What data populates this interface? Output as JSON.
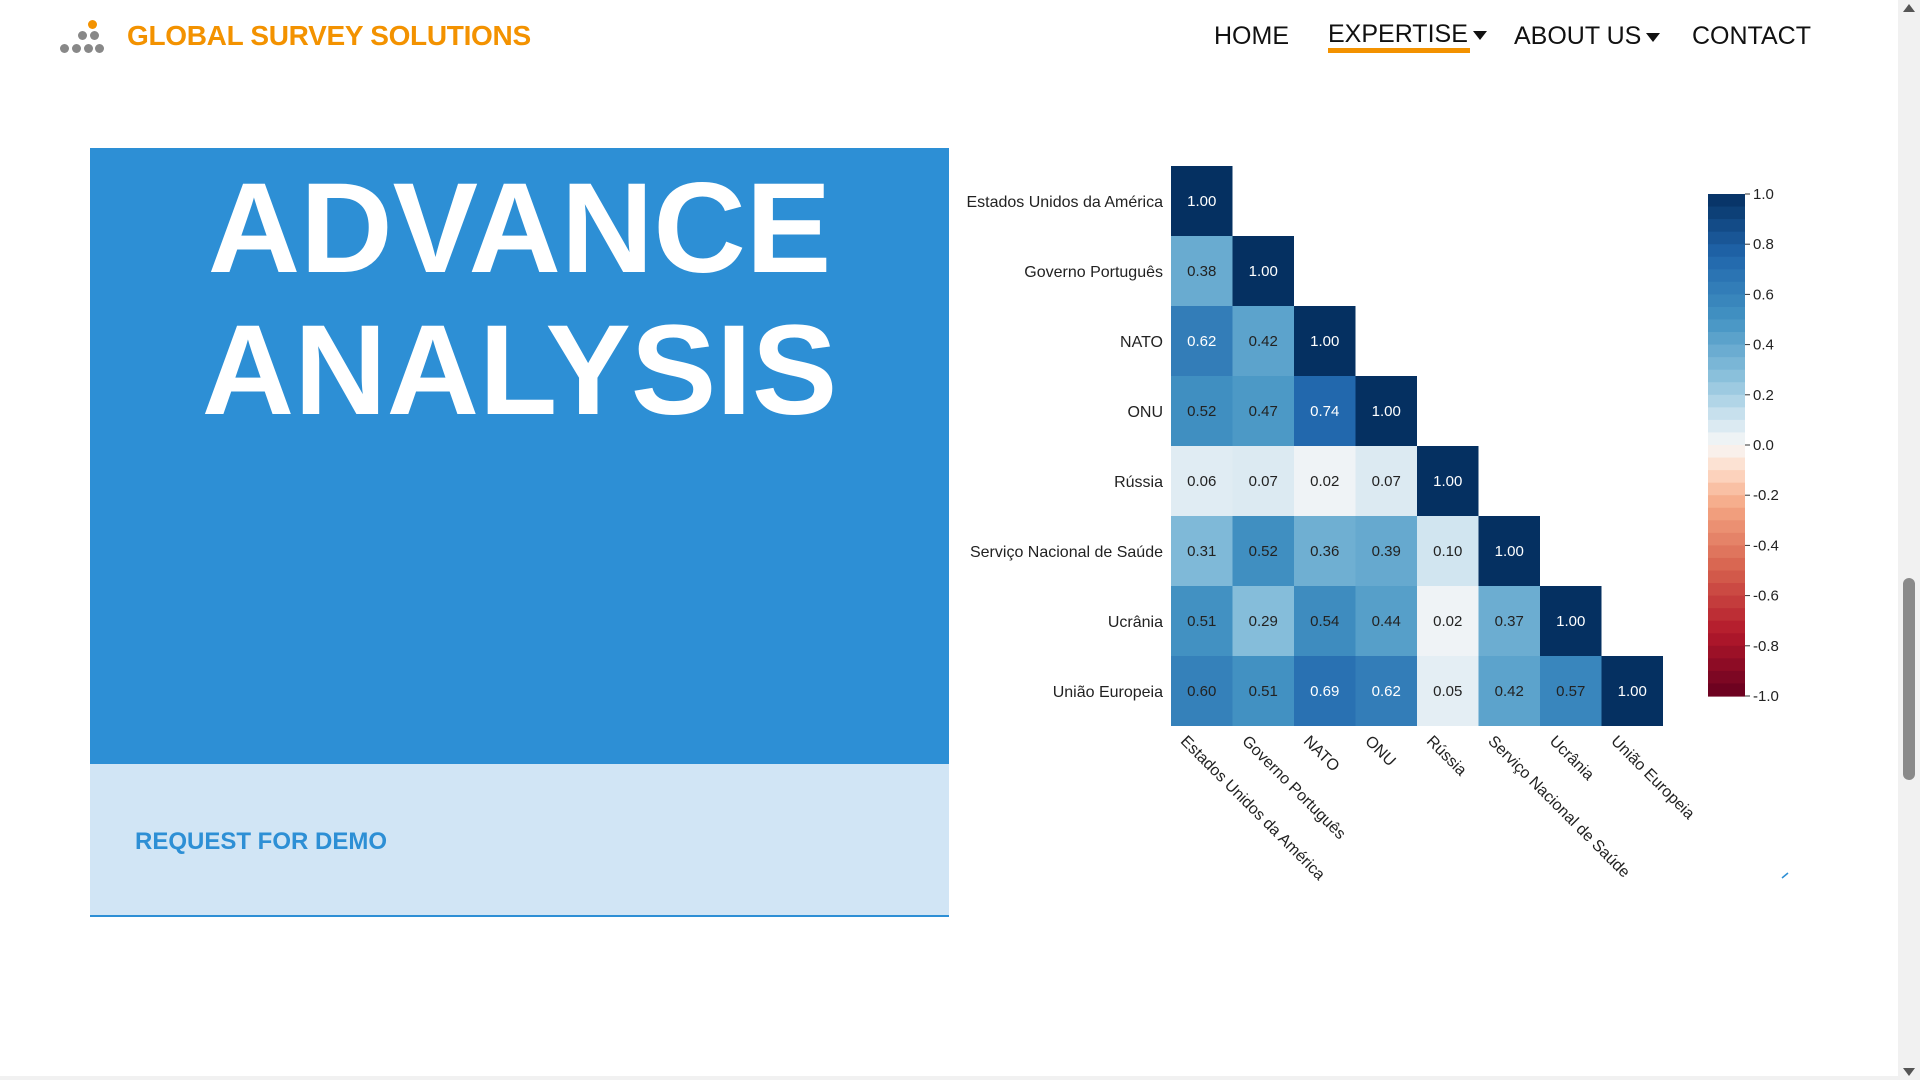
{
  "header": {
    "brand": "GLOBAL SURVEY SOLUTIONS",
    "nav": [
      {
        "label": "HOME"
      },
      {
        "label": "EXPERTISE",
        "dropdown": true,
        "active": true
      },
      {
        "label": "ABOUT US",
        "dropdown": true
      },
      {
        "label": "CONTACT"
      }
    ]
  },
  "hero": {
    "title_line1": "ADVANCE",
    "title_line2": "ANALYSIS",
    "cta": "REQUEST FOR DEMO"
  },
  "colors": {
    "brand_orange": "#f39200",
    "hero_blue": "#2d8fd5",
    "hero_light": "#d1e5f5"
  },
  "chart_data": {
    "type": "heatmap",
    "variables": [
      "Estados Unidos da América",
      "Governo Português",
      "NATO",
      "ONU",
      "Rússia",
      "Serviço Nacional de Saúde",
      "Ucrânia",
      "União Europeia"
    ],
    "matrix": [
      [
        1.0
      ],
      [
        0.38,
        1.0
      ],
      [
        0.62,
        0.42,
        1.0
      ],
      [
        0.52,
        0.47,
        0.74,
        1.0
      ],
      [
        0.06,
        0.07,
        0.02,
        0.07,
        1.0
      ],
      [
        0.31,
        0.52,
        0.36,
        0.39,
        0.1,
        1.0
      ],
      [
        0.51,
        0.29,
        0.54,
        0.44,
        0.02,
        0.37,
        1.0
      ],
      [
        0.6,
        0.51,
        0.69,
        0.62,
        0.05,
        0.42,
        0.57,
        1.0
      ]
    ],
    "colorbar": {
      "range": [
        -1.0,
        1.0
      ],
      "ticks": [
        "1.0",
        "0.8",
        "0.6",
        "0.4",
        "0.2",
        "0.0",
        "-0.2",
        "-0.4",
        "-0.6",
        "-0.8",
        "-1.0"
      ],
      "colormap": "RdBu"
    }
  }
}
